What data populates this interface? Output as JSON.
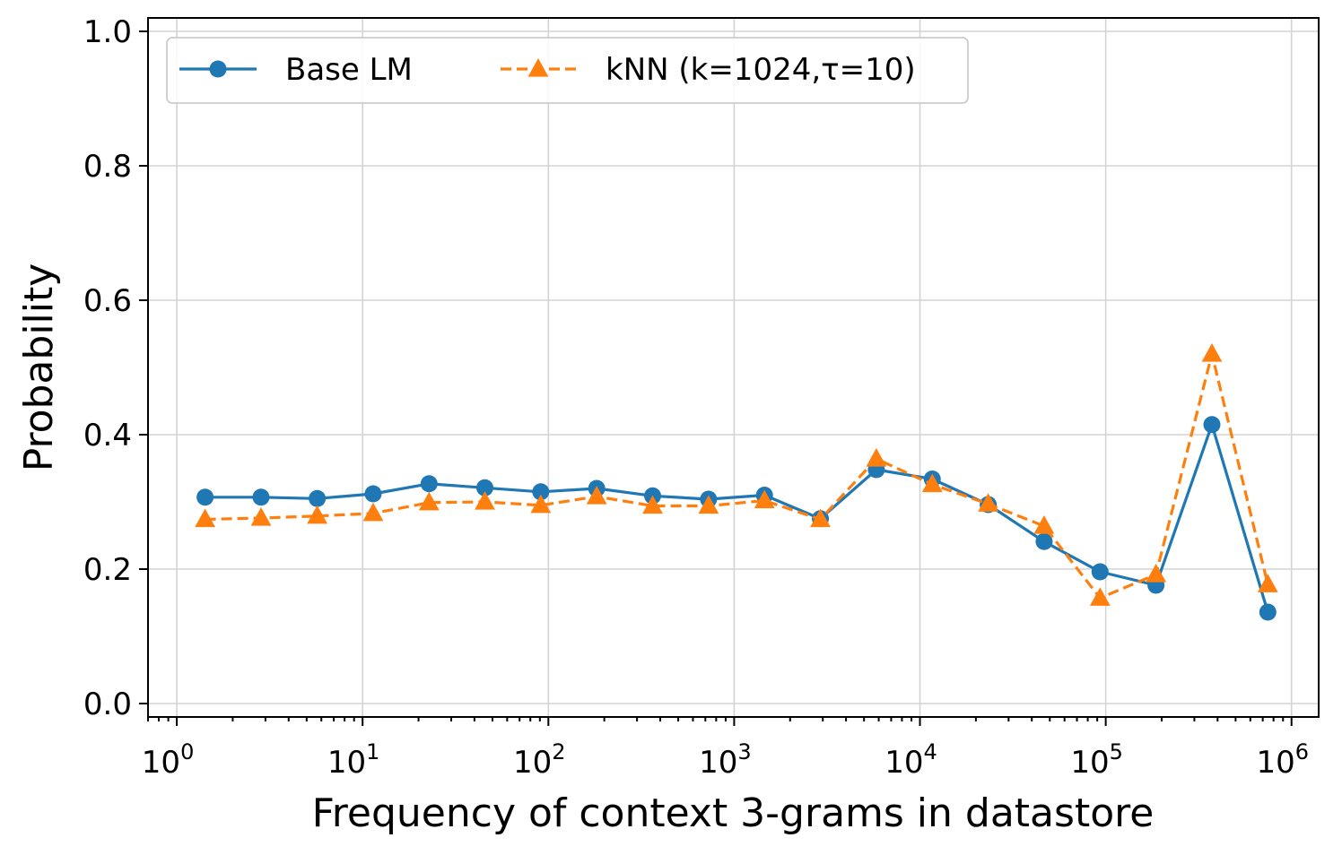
{
  "chart_data": {
    "type": "line",
    "title": "",
    "xlabel": "Frequency of context 3-grams in datastore",
    "ylabel": "Probability",
    "xscale": "log",
    "xlim": [
      0.7,
      1400000
    ],
    "ylim": [
      -0.02,
      1.02
    ],
    "grid": true,
    "legend_position": "top-left",
    "x_ticks": [
      {
        "value": 1,
        "base": "10",
        "exp": "0"
      },
      {
        "value": 10,
        "base": "10",
        "exp": "1"
      },
      {
        "value": 100,
        "base": "10",
        "exp": "2"
      },
      {
        "value": 1000,
        "base": "10",
        "exp": "3"
      },
      {
        "value": 10000,
        "base": "10",
        "exp": "4"
      },
      {
        "value": 100000,
        "base": "10",
        "exp": "5"
      },
      {
        "value": 1000000,
        "base": "10",
        "exp": "6"
      }
    ],
    "y_ticks": [
      {
        "value": 0.0,
        "label": "0.0"
      },
      {
        "value": 0.2,
        "label": "0.2"
      },
      {
        "value": 0.4,
        "label": "0.4"
      },
      {
        "value": 0.6,
        "label": "0.6"
      },
      {
        "value": 0.8,
        "label": "0.8"
      },
      {
        "value": 1.0,
        "label": "1.0"
      }
    ],
    "x": [
      1.42,
      2.84,
      5.7,
      11.4,
      22.8,
      45.5,
      91,
      182,
      364,
      728,
      1456,
      2912,
      5825,
      11650,
      23300,
      46600,
      93200,
      186400,
      372800,
      745600
    ],
    "series": [
      {
        "name": "Base LM",
        "color": "#1f77b4",
        "marker": "circle",
        "linestyle": "solid",
        "values": [
          0.307,
          0.307,
          0.305,
          0.312,
          0.327,
          0.321,
          0.315,
          0.32,
          0.309,
          0.304,
          0.31,
          0.275,
          0.348,
          0.334,
          0.296,
          0.241,
          0.196,
          0.176,
          0.415,
          0.136
        ]
      },
      {
        "name": "kNN (k=1024,τ=10)",
        "color": "#ff7f0e",
        "marker": "triangle",
        "linestyle": "dashed",
        "values": [
          0.274,
          0.276,
          0.279,
          0.283,
          0.299,
          0.3,
          0.295,
          0.308,
          0.294,
          0.294,
          0.302,
          0.274,
          0.364,
          0.326,
          0.297,
          0.264,
          0.157,
          0.192,
          0.52,
          0.177
        ]
      }
    ]
  }
}
